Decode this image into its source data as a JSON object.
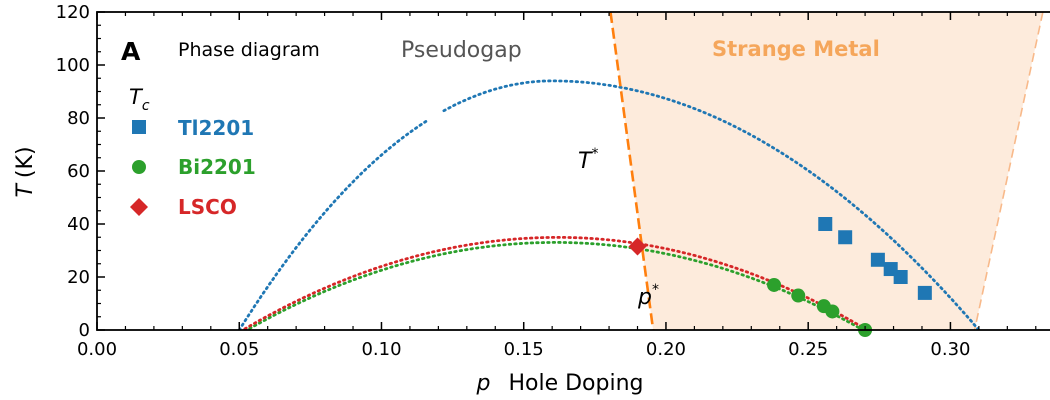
{
  "chart_data": {
    "type": "scatter",
    "panel_letter": "A",
    "title": "Phase diagram",
    "xlabel_symbol": "p",
    "xlabel": "Hole Doping",
    "ylabel_symbol": "T",
    "ylabel_unit": "(K)",
    "xlim": [
      0.0,
      0.335
    ],
    "ylim": [
      0,
      120
    ],
    "x_ticks": [
      0.0,
      0.05,
      0.1,
      0.15,
      0.2,
      0.25,
      0.3
    ],
    "x_tick_labels": [
      "0.00",
      "0.05",
      "0.10",
      "0.15",
      "0.20",
      "0.25",
      "0.30"
    ],
    "y_ticks": [
      0,
      20,
      40,
      60,
      80,
      100,
      120
    ],
    "y_tick_labels": [
      "0",
      "20",
      "40",
      "60",
      "80",
      "100",
      "120"
    ],
    "grid": false,
    "legend_position": "left",
    "legend_title": "T_c",
    "colors": {
      "Tl2201": "#1f77b4",
      "Bi2201": "#2ca02c",
      "LSCO": "#d62728",
      "tstar": "#ff7f0e",
      "strange_metal_label": "#f5a65b",
      "strange_metal_fill": "#fdebdc",
      "pseudogap_label": "#555555"
    },
    "region_labels": {
      "pseudogap": "Pseudogap",
      "strange_metal": "Strange Metal"
    },
    "line_labels": {
      "tstar": "T",
      "tstar_sup": "*",
      "pstar": "p",
      "pstar_sup": "*"
    },
    "strange_metal_region": {
      "top_left_x": 0.1805,
      "bottom_left_x": 0.1955,
      "top_right_x": 0.3325,
      "bottom_right_x": 0.3085
    },
    "tstar_line": {
      "x_top": 0.1805,
      "y_top": 120,
      "x_bottom": 0.1955,
      "y_bottom": 0
    },
    "domes": [
      {
        "name": "Tl2201",
        "p_min": 0.05,
        "p_max": 0.31,
        "p_peak": 0.16,
        "t_max": 94,
        "gap_from": 0.1175,
        "gap_to": 0.1215
      },
      {
        "name": "Bi2201",
        "p_min": 0.052,
        "p_max": 0.27,
        "p_peak": 0.161,
        "t_max": 33.5
      },
      {
        "name": "LSCO",
        "p_min": 0.052,
        "p_max": 0.27,
        "p_peak": 0.162,
        "t_max": 34.5
      }
    ],
    "series": [
      {
        "name": "Tl2201",
        "marker": "square",
        "points": [
          [
            0.256,
            40
          ],
          [
            0.263,
            35
          ],
          [
            0.2745,
            26.5
          ],
          [
            0.279,
            23
          ],
          [
            0.2825,
            20
          ],
          [
            0.291,
            14
          ]
        ]
      },
      {
        "name": "Bi2201",
        "marker": "circle",
        "points": [
          [
            0.238,
            17
          ],
          [
            0.2465,
            13
          ],
          [
            0.2555,
            9
          ],
          [
            0.2585,
            7
          ],
          [
            0.27,
            0
          ]
        ]
      },
      {
        "name": "LSCO",
        "marker": "diamond",
        "points": [
          [
            0.19,
            31.5
          ]
        ]
      }
    ]
  }
}
